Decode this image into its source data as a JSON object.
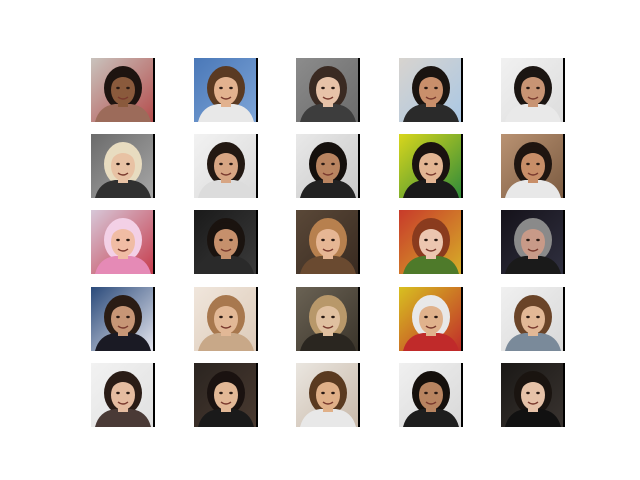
{
  "figure": {
    "rows": 5,
    "cols": 5,
    "tiles": [
      {
        "bg": "#c9c3bd",
        "bg2": "#b44a4a",
        "skin": "#8a5a3c",
        "hair": "#1e1410",
        "shirt": "#9c6b5a"
      },
      {
        "bg": "#4a78b8",
        "bg2": "#7fa6d8",
        "skin": "#e2b28f",
        "hair": "#5a3a22",
        "shirt": "#e8e8e8"
      },
      {
        "bg": "#8c8c8c",
        "bg2": "#6a6a6a",
        "skin": "#e7c2a8",
        "hair": "#3a2a22",
        "shirt": "#3d3d3d"
      },
      {
        "bg": "#d8d4cf",
        "bg2": "#a9c7e4",
        "skin": "#c98f6b",
        "hair": "#1a1410",
        "shirt": "#2a2a2a"
      },
      {
        "bg": "#f1f1f1",
        "bg2": "#dcdcdc",
        "skin": "#c89474",
        "hair": "#1b1512",
        "shirt": "#e9e9e9"
      },
      {
        "bg": "#6b6b6b",
        "bg2": "#a8a8a8",
        "skin": "#e8c2a4",
        "hair": "#e8dcc0",
        "shirt": "#303030"
      },
      {
        "bg": "#f2f2f2",
        "bg2": "#d9d9d9",
        "skin": "#d7a583",
        "hair": "#221812",
        "shirt": "#dcdcdc"
      },
      {
        "bg": "#e9e9e9",
        "bg2": "#c7c7c7",
        "skin": "#b98460",
        "hair": "#15100d",
        "shirt": "#222222"
      },
      {
        "bg": "#d8d61c",
        "bg2": "#2d8a3a",
        "skin": "#e3b593",
        "hair": "#1a1210",
        "shirt": "#1a1a1a"
      },
      {
        "bg": "#b99272",
        "bg2": "#7a5a40",
        "skin": "#c88e68",
        "hair": "#1f1510",
        "shirt": "#e8e8e8"
      },
      {
        "bg": "#d7c7d8",
        "bg2": "#c63a4a",
        "skin": "#f0bca4",
        "hair": "#f3d0e6",
        "shirt": "#e58ab6"
      },
      {
        "bg": "#1a1a1a",
        "bg2": "#3b3b3b",
        "skin": "#c6906c",
        "hair": "#1a130f",
        "shirt": "#2a2a2a"
      },
      {
        "bg": "#5a4838",
        "bg2": "#382a20",
        "skin": "#e6b694",
        "hair": "#b7804e",
        "shirt": "#6a4a30"
      },
      {
        "bg": "#c83a2a",
        "bg2": "#d7b028",
        "skin": "#ecc6b0",
        "hair": "#8a3b1e",
        "shirt": "#4e7a2a"
      },
      {
        "bg": "#15121a",
        "bg2": "#303040",
        "skin": "#c89a88",
        "hair": "#8a8a8a",
        "shirt": "#1a1a1a"
      },
      {
        "bg": "#2a4a7a",
        "bg2": "#e8e8f0",
        "skin": "#c79676",
        "hair": "#2a1c14",
        "shirt": "#1a1a24"
      },
      {
        "bg": "#f0e6dc",
        "bg2": "#dccab8",
        "skin": "#e2b896",
        "hair": "#a8784e",
        "shirt": "#c8a888"
      },
      {
        "bg": "#6a6254",
        "bg2": "#3a342a",
        "skin": "#e0c0a0",
        "hair": "#b8986a",
        "shirt": "#2a2620"
      },
      {
        "bg": "#d8c020",
        "bg2": "#c02a2a",
        "skin": "#e0b28c",
        "hair": "#e8e8e8",
        "shirt": "#c02a2a"
      },
      {
        "bg": "#f0f0f0",
        "bg2": "#d8d8d8",
        "skin": "#e2b896",
        "hair": "#6a4428",
        "shirt": "#7a8a9a"
      },
      {
        "bg": "#f2f2f2",
        "bg2": "#e0e0e0",
        "skin": "#e5bca0",
        "hair": "#2a1c16",
        "shirt": "#4a3a36"
      },
      {
        "bg": "#2a2420",
        "bg2": "#4a3a30",
        "skin": "#e2b896",
        "hair": "#1a1210",
        "shirt": "#1a1a1a"
      },
      {
        "bg": "#eae6e0",
        "bg2": "#c8b8a8",
        "skin": "#e0b088",
        "hair": "#5a3a20",
        "shirt": "#e8e8e8"
      },
      {
        "bg": "#f0f0f0",
        "bg2": "#d8d8d8",
        "skin": "#b88460",
        "hair": "#15100c",
        "shirt": "#1e1e1e"
      },
      {
        "bg": "#1a1816",
        "bg2": "#3a3430",
        "skin": "#e6c2a8",
        "hair": "#1a1410",
        "shirt": "#111111"
      }
    ]
  }
}
